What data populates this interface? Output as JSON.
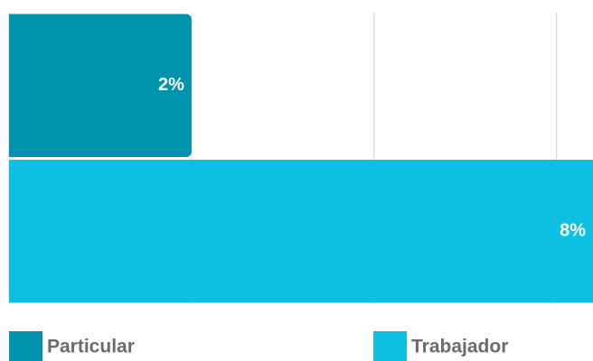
{
  "chart_data": {
    "type": "barh",
    "categories": [
      "Particular",
      "Trabajador"
    ],
    "values": [
      2,
      8
    ],
    "value_labels": [
      "2%",
      "8%"
    ],
    "colors": [
      "#0093ae",
      "#0cc0e2"
    ],
    "xlim": [
      0,
      6.4
    ],
    "xticks": [
      0,
      2,
      4,
      6
    ],
    "grid": true
  }
}
